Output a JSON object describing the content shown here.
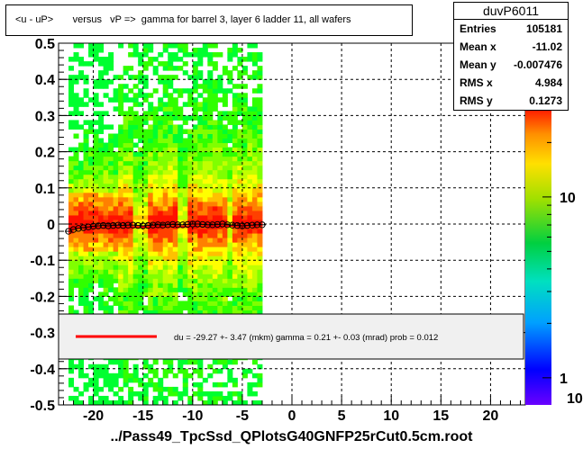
{
  "title": "<u - uP>       versus   vP =>  gamma for barrel 3, layer 6 ladder 11, all wafers",
  "stats": {
    "name": "duvP6011",
    "rows": [
      {
        "label": "Entries",
        "value": "105181"
      },
      {
        "label": "Mean x",
        "value": "-11.02"
      },
      {
        "label": "Mean y",
        "value": "-0.007476"
      },
      {
        "label": "RMS x",
        "value": "4.984"
      },
      {
        "label": "RMS y",
        "value": "0.1273"
      }
    ]
  },
  "legend_text": "du =  -29.27 +-  3.47 (mkm) gamma =    0.21 +-  0.03 (mrad) prob = 0.012",
  "footer": "../Pass49_TpcSsd_QPlotsG40GNFP25rCut0.5cm.root",
  "colors": {
    "fit_line": "#ff0000",
    "frame": "#000000"
  },
  "chart_data": {
    "type": "heatmap",
    "xlim": [
      -23.5,
      23.5
    ],
    "ylim": [
      -0.5,
      0.5
    ],
    "x_ticks": [
      -20,
      -15,
      -10,
      -5,
      0,
      5,
      10,
      15,
      20
    ],
    "x_tick_labels": [
      "-20",
      "-15",
      "-10",
      "-5",
      "0",
      "5",
      "10",
      "15",
      "20"
    ],
    "y_ticks": [
      -0.5,
      -0.4,
      -0.3,
      -0.2,
      -0.1,
      0,
      0.1,
      0.2,
      0.3,
      0.4,
      0.5
    ],
    "y_tick_labels": [
      "-0.5",
      "-0.4",
      "-0.3",
      "-0.2",
      "-0.1",
      "0",
      "0.1",
      "0.2",
      "0.3",
      "0.4",
      "0.5"
    ],
    "grid": true,
    "z_scale": "log",
    "z_ticks": [
      1,
      10
    ],
    "z_tick_labels": [
      "1",
      "10"
    ],
    "z_max_label": "10",
    "data_x_range": [
      -22.5,
      -3
    ],
    "profile": {
      "x": [
        -22.5,
        -22,
        -21.5,
        -21,
        -20.5,
        -20,
        -19.5,
        -19,
        -18.5,
        -18,
        -17.5,
        -17,
        -16.5,
        -16,
        -15.5,
        -15,
        -14.5,
        -14,
        -13.5,
        -13,
        -12.5,
        -12,
        -11.5,
        -11,
        -10.5,
        -10,
        -9.5,
        -9,
        -8.5,
        -8,
        -7.5,
        -7,
        -6.5,
        -6,
        -5.5,
        -5,
        -4.5,
        -4,
        -3.5,
        -3
      ],
      "y": [
        -0.02,
        -0.015,
        -0.012,
        -0.01,
        -0.008,
        -0.006,
        -0.005,
        -0.004,
        -0.005,
        -0.004,
        -0.003,
        -0.004,
        -0.003,
        -0.003,
        -0.004,
        -0.005,
        -0.004,
        -0.003,
        -0.002,
        -0.003,
        -0.002,
        -0.001,
        -0.002,
        -0.002,
        -0.001,
        0.0,
        0.0,
        -0.001,
        -0.002,
        -0.002,
        -0.001,
        0.0,
        -0.002,
        -0.003,
        -0.004,
        -0.005,
        -0.004,
        -0.003,
        -0.002,
        -0.002
      ]
    },
    "fit_line": {
      "x": [
        -22.5,
        -3
      ],
      "y": [
        -0.011,
        -0.004
      ]
    }
  }
}
